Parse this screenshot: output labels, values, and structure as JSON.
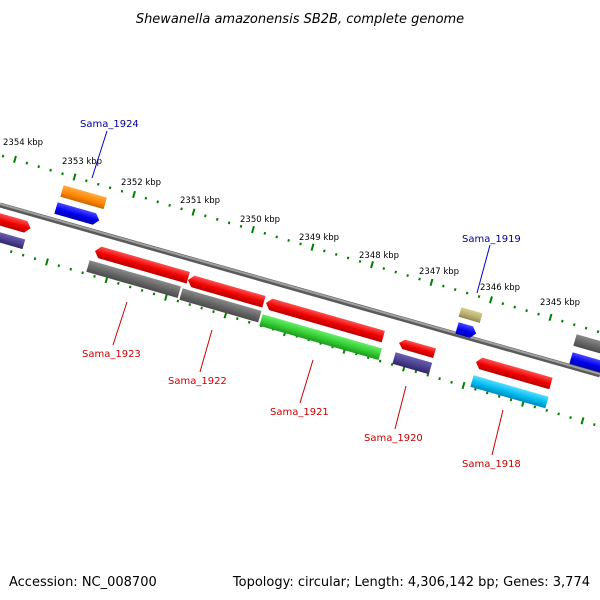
{
  "title": "Shewanella amazonensis SB2B, complete genome",
  "accession": "Accession: NC_008700",
  "summary": "Topology: circular; Length: 4,306,142 bp; Genes: 3,774",
  "scale_labels": [
    "2354 kbp",
    "2353 kbp",
    "2352 kbp",
    "2351 kbp",
    "2350 kbp",
    "2349 kbp",
    "2348 kbp",
    "2347 kbp",
    "2346 kbp",
    "2345 kbp"
  ],
  "gene_labels": {
    "sama_1924": "Sama_1924",
    "sama_1919": "Sama_1919",
    "sama_1923": "Sama_1923",
    "sama_1922": "Sama_1922",
    "sama_1921": "Sama_1921",
    "sama_1920": "Sama_1920",
    "sama_1918": "Sama_1918"
  },
  "colors": {
    "backbone": "#808080",
    "ticks": "#008000",
    "red": "#ff0000",
    "gray": "#666666",
    "green": "#33cc33",
    "blue": "#0000ff",
    "orange": "#ff8800",
    "purple": "#4b3f8f",
    "cyan": "#00bbee",
    "khaki": "#b8b070",
    "top_label": "#000099",
    "bottom_label": "#cc0000"
  }
}
